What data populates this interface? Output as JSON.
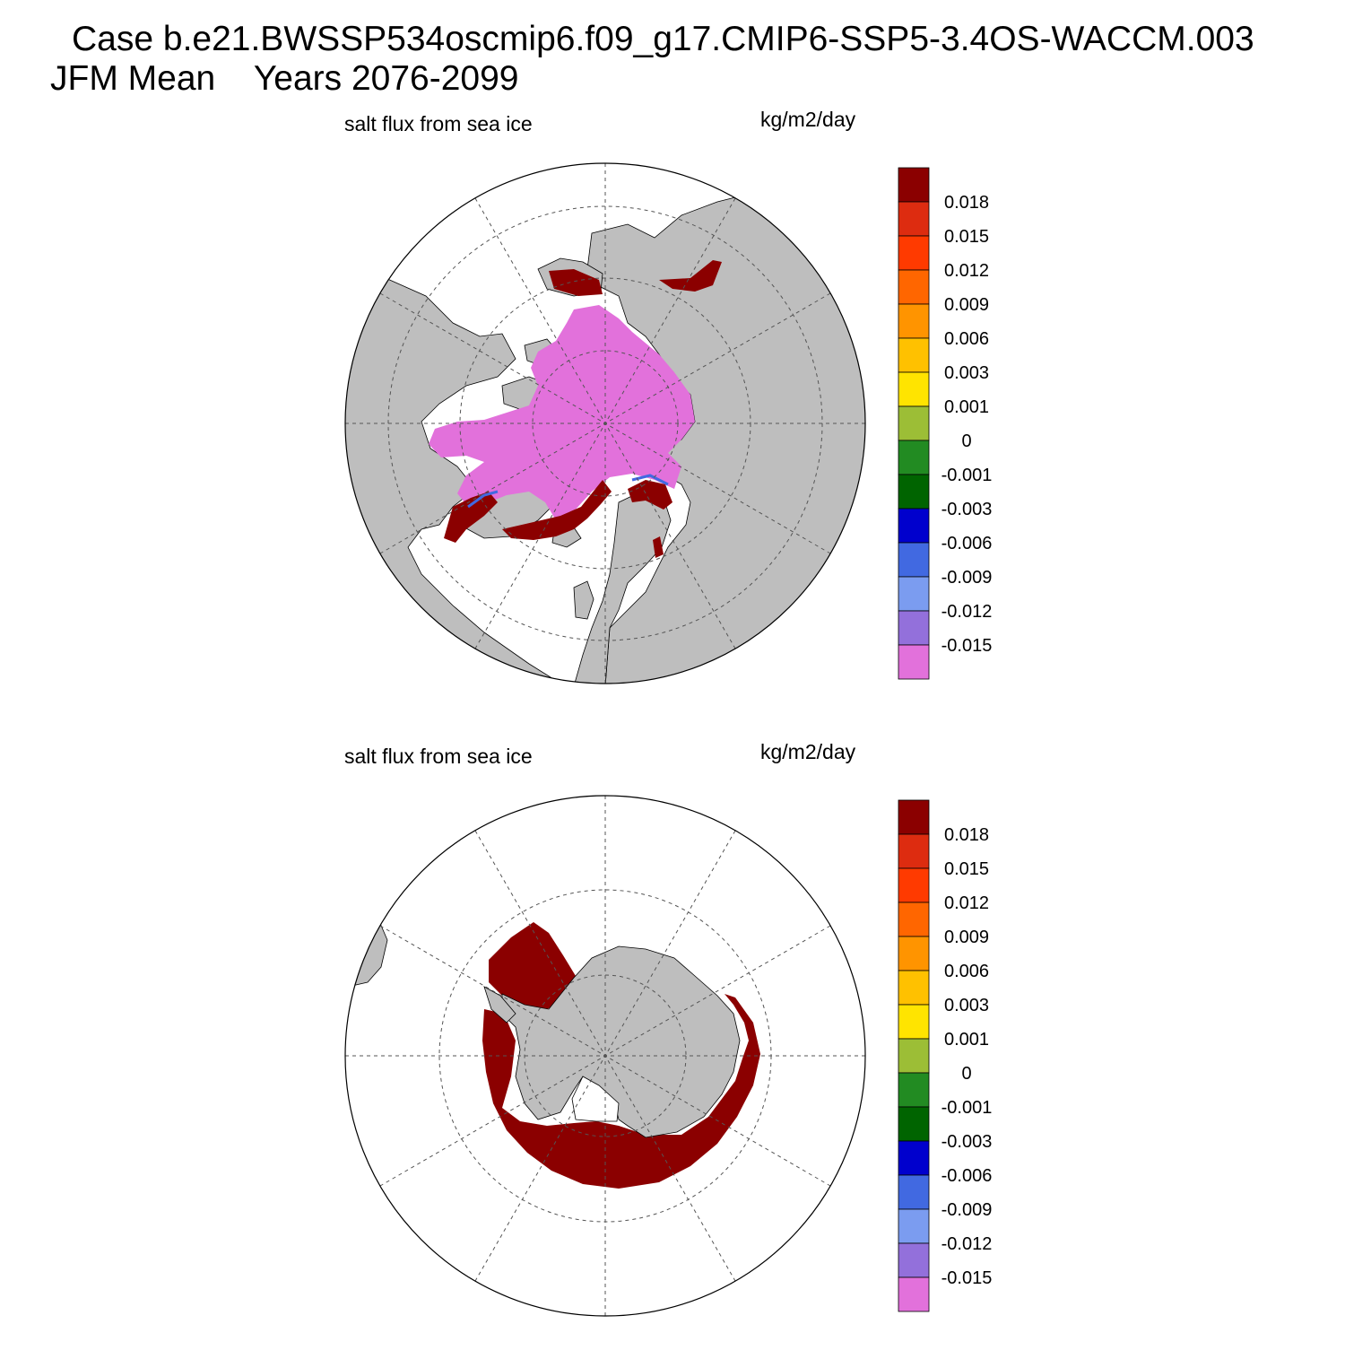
{
  "header": {
    "case_line": "Case b.e21.BWSSP534oscmip6.f09_g17.CMIP6-SSP5-3.4OS-WACCM.003",
    "period_line": "JFM Mean    Years 2076-2099"
  },
  "panels": [
    {
      "id": "north",
      "title": "salt flux from sea ice",
      "units": "kg/m2/day",
      "hemisphere": "north"
    },
    {
      "id": "south",
      "title": "salt flux from sea ice",
      "units": "kg/m2/day",
      "hemisphere": "south"
    }
  ],
  "colorbar": {
    "labels": [
      "0.018",
      "0.015",
      "0.012",
      "0.009",
      "0.006",
      "0.003",
      "0.001",
      "0",
      "-0.001",
      "-0.003",
      "-0.006",
      "-0.009",
      "-0.012",
      "-0.015"
    ],
    "colors": [
      "#8b0000",
      "#dd2c10",
      "#ff3a00",
      "#ff6600",
      "#ff9400",
      "#ffc100",
      "#ffe400",
      "#9cbe36",
      "#228b22",
      "#006400",
      "#0000cd",
      "#4169e1",
      "#7b9cf0",
      "#9370db",
      "#e271db"
    ]
  },
  "colors": {
    "land": "#bebebe",
    "ocean": "#ffffff",
    "positive_flux": "#8b0000",
    "negative_flux": "#e271db",
    "grid": "#555555"
  }
}
